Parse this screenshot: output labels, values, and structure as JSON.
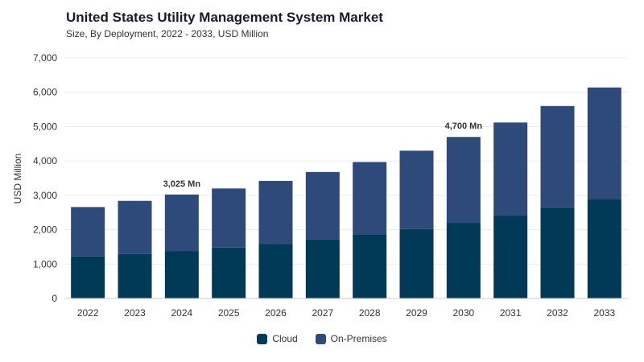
{
  "header": {
    "title": "United States Utility Management System Market",
    "subtitle": "Size, By Deployment, 2022 - 2033, USD Million"
  },
  "colors": {
    "cloud": "#003a57",
    "on_premises": "#2e4a7a"
  },
  "chart_data": {
    "type": "bar",
    "stacked": true,
    "title": "United States Utility Management System Market",
    "subtitle": "Size, By Deployment, 2022 - 2033, USD Million",
    "xlabel": "",
    "ylabel": "USD Million",
    "ylim": [
      0,
      7000
    ],
    "yticks": [
      0,
      1000,
      2000,
      3000,
      4000,
      5000,
      6000,
      7000
    ],
    "ytick_labels": [
      "0",
      "1,000",
      "2,000",
      "3,000",
      "4,000",
      "5,000",
      "6,000",
      "7,000"
    ],
    "categories": [
      "2022",
      "2023",
      "2024",
      "2025",
      "2026",
      "2027",
      "2028",
      "2029",
      "2030",
      "2031",
      "2032",
      "2033"
    ],
    "series": [
      {
        "name": "Cloud",
        "values": [
          1220,
          1290,
          1380,
          1480,
          1580,
          1710,
          1860,
          2020,
          2200,
          2410,
          2650,
          2900
        ]
      },
      {
        "name": "On-Premises",
        "values": [
          1440,
          1550,
          1645,
          1720,
          1840,
          1970,
          2110,
          2280,
          2500,
          2710,
          2950,
          3240
        ]
      }
    ],
    "annotations": [
      {
        "category": "2024",
        "label": "3,025 Mn"
      },
      {
        "category": "2030",
        "label": "4,700 Mn"
      }
    ],
    "grid": true,
    "legend_position": "bottom-center"
  }
}
